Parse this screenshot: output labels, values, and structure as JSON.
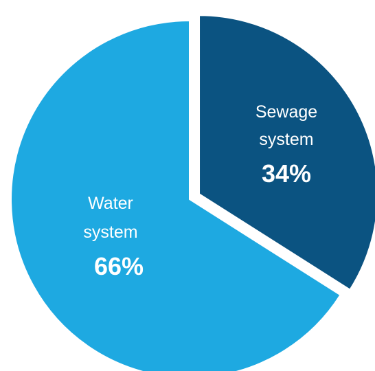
{
  "chart_data": {
    "type": "pie",
    "title": "",
    "slices": [
      {
        "name_line1": "Sewage",
        "name_line2": "system",
        "value": 34,
        "value_label": "34%",
        "color": "#0b5381"
      },
      {
        "name_line1": "Water",
        "name_line2": "system",
        "value": 66,
        "value_label": "66%",
        "color": "#1ea9e1"
      }
    ],
    "exploded_slice": "Sewage system",
    "legend": "none"
  }
}
